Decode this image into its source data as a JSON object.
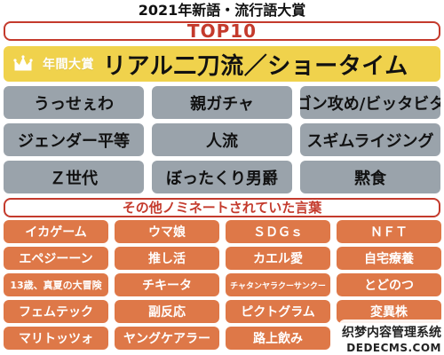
{
  "header": {
    "title": "2021年新語・流行語大賞",
    "top10_banner": "TOP10",
    "other_banner": "その他ノミネートされていた言葉"
  },
  "grand_prize": {
    "label": "年間大賞",
    "phrase": "リアル二刀流／ショータイム",
    "icon": "crown-icon",
    "accent_color": "#f0d24c"
  },
  "top10": [
    "うっせぇわ",
    "親ガチャ",
    "ゴン攻め/ビッタビタ",
    "ジェンダー平等",
    "人流",
    "スギムライジング",
    "Ｚ世代",
    "ぼったくり男爵",
    "黙食"
  ],
  "nominees": [
    "イカゲーム",
    "ウマ娘",
    "ＳＤＧｓ",
    "ＮＦＴ",
    "エペジーーン",
    "推し活",
    "カエル愛",
    "自宅療養",
    "13歳、真夏の大冒険",
    "チキータ",
    "チャタンヤラクーサンクー",
    "とどのつ",
    "フェムテック",
    "副反応",
    "ピクトグラム",
    "変異株",
    "マリトッツォ",
    "ヤングケアラー",
    "路上飲み"
  ],
  "watermark": {
    "line1": "织梦内容管理系统",
    "line2": "DEDECMS.COM"
  },
  "colors": {
    "banner_red": "#c43a2c",
    "gray_tile": "#9aa3ab",
    "orange_tile": "#de7848"
  }
}
